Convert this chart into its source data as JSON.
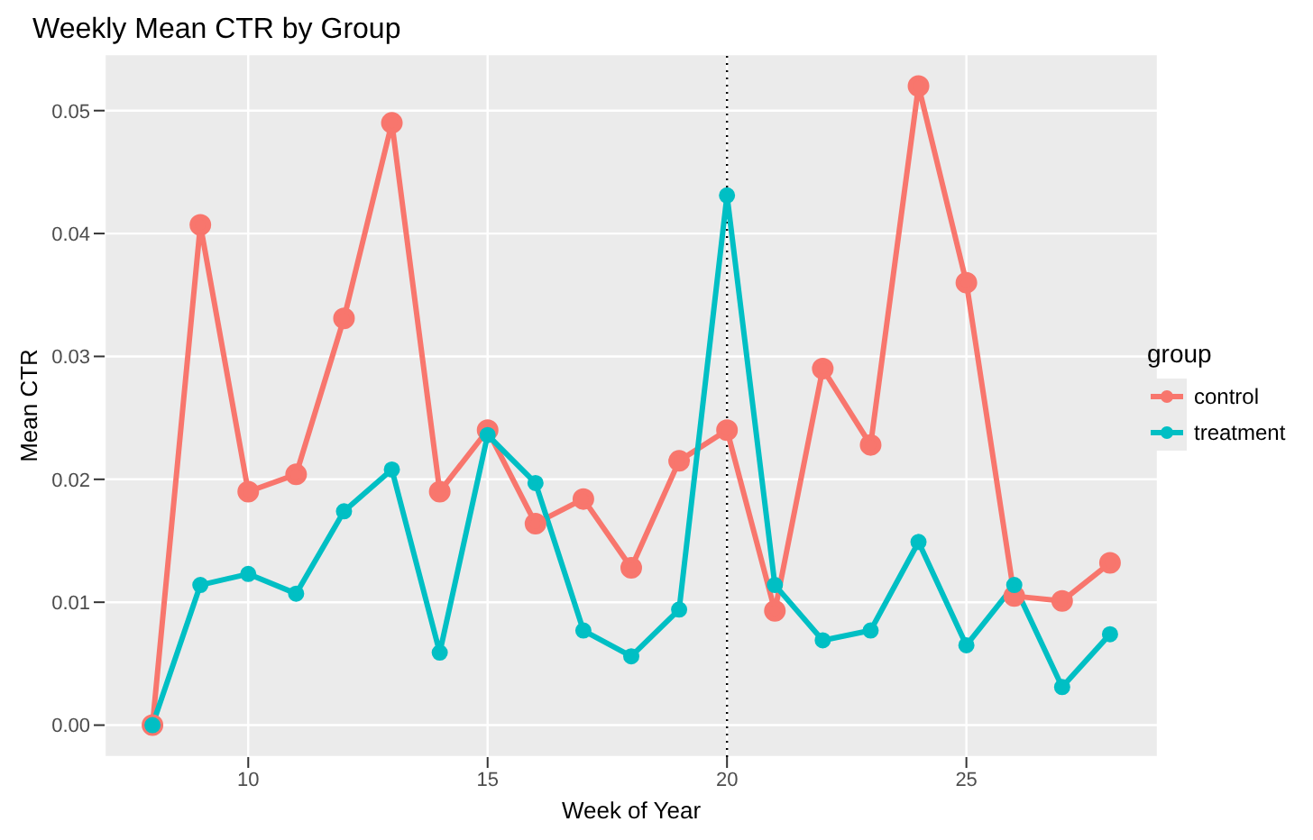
{
  "chart_data": {
    "type": "line",
    "title": "Weekly Mean CTR by Group",
    "xlabel": "Week of Year",
    "ylabel": "Mean CTR",
    "legend_title": "group",
    "x": [
      8,
      9,
      10,
      11,
      12,
      13,
      14,
      15,
      16,
      17,
      18,
      19,
      20,
      21,
      22,
      23,
      24,
      25,
      26,
      27,
      28
    ],
    "series": [
      {
        "name": "control",
        "color": "#f8766d",
        "values": [
          0,
          0.0407,
          0.019,
          0.0204,
          0.0331,
          0.049,
          0.019,
          0.024,
          0.0164,
          0.0184,
          0.0128,
          0.0215,
          0.024,
          0.0093,
          0.029,
          0.0228,
          0.052,
          0.036,
          0.0105,
          0.0101,
          0.0132
        ]
      },
      {
        "name": "treatment",
        "color": "#00bfc4",
        "values": [
          0,
          0.0114,
          0.0123,
          0.0107,
          0.0174,
          0.0208,
          0.0059,
          0.0236,
          0.0197,
          0.0077,
          0.0056,
          0.0094,
          0.0431,
          0.0114,
          0.0069,
          0.0077,
          0.0149,
          0.0065,
          0.0114,
          0.0031,
          0.0074
        ]
      }
    ],
    "xlim": [
      7,
      29
    ],
    "xticks": [
      10,
      15,
      20,
      25
    ],
    "ylim": [
      -0.0026,
      0.0546
    ],
    "yticks": [
      {
        "value": 0,
        "label": "0.00"
      },
      {
        "value": 0.01,
        "label": "0.01"
      },
      {
        "value": 0.02,
        "label": "0.02"
      },
      {
        "value": 0.03,
        "label": "0.03"
      },
      {
        "value": 0.04,
        "label": "0.04"
      },
      {
        "value": 0.05,
        "label": "0.05"
      }
    ],
    "ref_lines": [
      {
        "axis": "x",
        "value": 20,
        "color": "#000000",
        "line_style": "dotted"
      }
    ],
    "grid": true,
    "legend": "right",
    "marker": "circle",
    "line_style": "solid"
  }
}
